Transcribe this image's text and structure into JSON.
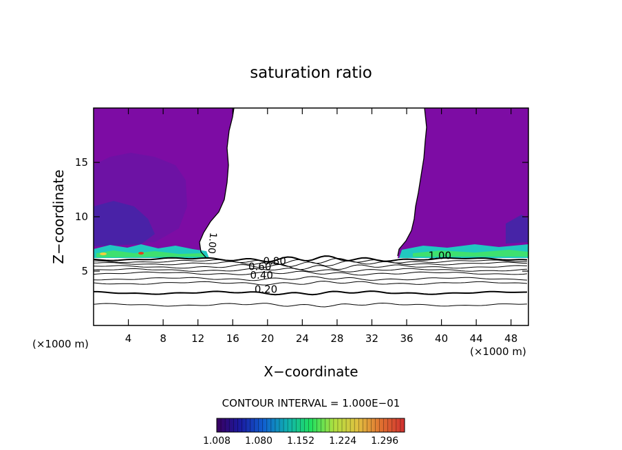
{
  "chart_data": {
    "type": "contour",
    "title": "saturation ratio",
    "xlabel": "X−coordinate",
    "ylabel": "Z−coordinate",
    "x_unit_left": "(×1000 m)",
    "x_unit_right": "(×1000 m)",
    "xlim": [
      0,
      50
    ],
    "ylim": [
      0,
      20
    ],
    "x_ticks": [
      "4",
      "8",
      "12",
      "16",
      "20",
      "24",
      "28",
      "32",
      "36",
      "40",
      "44",
      "48"
    ],
    "x_tick_values": [
      4,
      8,
      12,
      16,
      20,
      24,
      28,
      32,
      36,
      40,
      44,
      48
    ],
    "y_ticks": [
      "5",
      "10",
      "15"
    ],
    "y_tick_values": [
      5,
      10,
      15
    ],
    "contour_interval_label": "CONTOUR INTERVAL = 1.000E−01",
    "contour_labels": [
      {
        "text": "0.20",
        "x": 18.5,
        "z": 3.0
      },
      {
        "text": "0.40",
        "x": 18.0,
        "z": 4.3
      },
      {
        "text": "0.60",
        "x": 17.8,
        "z": 5.1
      },
      {
        "text": "0.80",
        "x": 19.5,
        "z": 5.6
      },
      {
        "text": "1.00",
        "x": 38.5,
        "z": 6.1
      },
      {
        "text": "1.00",
        "x": 13.3,
        "z": 7.6
      }
    ],
    "contour_levels_z": [
      1.9,
      3.0,
      3.9,
      4.3,
      4.8,
      5.1,
      5.4,
      5.7,
      5.9,
      6.1
    ],
    "colorbar": {
      "min": 1.008,
      "max": 1.33,
      "tick_labels": [
        "1.008",
        "1.080",
        "1.152",
        "1.224",
        "1.296"
      ],
      "colors": [
        "#3a0060",
        "#1a1aa0",
        "#1060d0",
        "#10b0b0",
        "#20e060",
        "#b0e040",
        "#e0c040",
        "#e07030",
        "#d03030"
      ]
    },
    "region_colors": {
      "supersaturated_mid": "#7d0ca4",
      "supersaturated_deep": "#5a1aa0",
      "supersaturated_blue": "#3a2aa8",
      "subsaturated": "#ffffff"
    }
  }
}
